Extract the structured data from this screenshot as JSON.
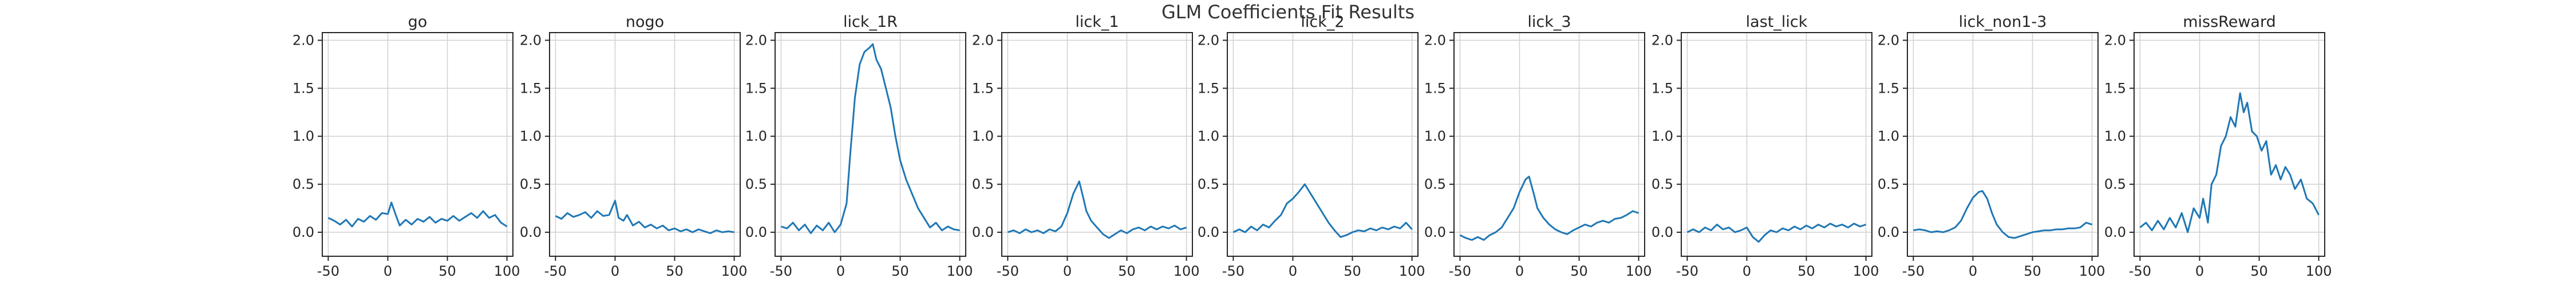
{
  "figure": {
    "title": "GLM Coefficients Fit Results"
  },
  "style": {
    "line_color": "#1f77b4",
    "grid_color": "#d0d0d0",
    "frame_color": "#262626"
  },
  "chart_data": [
    {
      "type": "line",
      "title": "go",
      "xlim": [
        -55,
        105
      ],
      "ylim": [
        -0.25,
        2.08
      ],
      "xticks": [
        -50,
        0,
        50,
        100
      ],
      "yticks": [
        0.0,
        0.5,
        1.0,
        1.5,
        2.0
      ],
      "grid": true,
      "xlabel": "",
      "ylabel": "",
      "points": [
        [
          -50,
          0.15
        ],
        [
          -45,
          0.12
        ],
        [
          -40,
          0.08
        ],
        [
          -35,
          0.13
        ],
        [
          -30,
          0.06
        ],
        [
          -25,
          0.14
        ],
        [
          -20,
          0.11
        ],
        [
          -15,
          0.17
        ],
        [
          -10,
          0.13
        ],
        [
          -5,
          0.2
        ],
        [
          0,
          0.19
        ],
        [
          3,
          0.31
        ],
        [
          7,
          0.17
        ],
        [
          10,
          0.07
        ],
        [
          15,
          0.13
        ],
        [
          20,
          0.08
        ],
        [
          25,
          0.14
        ],
        [
          30,
          0.11
        ],
        [
          35,
          0.16
        ],
        [
          40,
          0.1
        ],
        [
          45,
          0.14
        ],
        [
          50,
          0.12
        ],
        [
          55,
          0.17
        ],
        [
          60,
          0.12
        ],
        [
          65,
          0.16
        ],
        [
          70,
          0.2
        ],
        [
          75,
          0.15
        ],
        [
          80,
          0.22
        ],
        [
          85,
          0.15
        ],
        [
          90,
          0.18
        ],
        [
          95,
          0.1
        ],
        [
          100,
          0.06
        ]
      ]
    },
    {
      "type": "line",
      "title": "nogo",
      "xlim": [
        -55,
        105
      ],
      "ylim": [
        -0.25,
        2.08
      ],
      "xticks": [
        -50,
        0,
        50,
        100
      ],
      "yticks": [
        0.0,
        0.5,
        1.0,
        1.5,
        2.0
      ],
      "grid": true,
      "xlabel": "",
      "ylabel": "",
      "points": [
        [
          -50,
          0.17
        ],
        [
          -45,
          0.14
        ],
        [
          -40,
          0.2
        ],
        [
          -35,
          0.16
        ],
        [
          -30,
          0.18
        ],
        [
          -25,
          0.21
        ],
        [
          -20,
          0.15
        ],
        [
          -15,
          0.22
        ],
        [
          -10,
          0.17
        ],
        [
          -5,
          0.18
        ],
        [
          0,
          0.33
        ],
        [
          3,
          0.15
        ],
        [
          7,
          0.12
        ],
        [
          10,
          0.18
        ],
        [
          15,
          0.07
        ],
        [
          20,
          0.11
        ],
        [
          25,
          0.05
        ],
        [
          30,
          0.08
        ],
        [
          35,
          0.04
        ],
        [
          40,
          0.07
        ],
        [
          45,
          0.02
        ],
        [
          50,
          0.04
        ],
        [
          55,
          0.01
        ],
        [
          60,
          0.03
        ],
        [
          65,
          0.0
        ],
        [
          70,
          0.03
        ],
        [
          75,
          0.01
        ],
        [
          80,
          -0.01
        ],
        [
          85,
          0.02
        ],
        [
          90,
          0.0
        ],
        [
          95,
          0.01
        ],
        [
          100,
          0.0
        ]
      ]
    },
    {
      "type": "line",
      "title": "lick_1R",
      "xlim": [
        -55,
        105
      ],
      "ylim": [
        -0.25,
        2.08
      ],
      "xticks": [
        -50,
        0,
        50,
        100
      ],
      "yticks": [
        0.0,
        0.5,
        1.0,
        1.5,
        2.0
      ],
      "grid": true,
      "xlabel": "",
      "ylabel": "",
      "points": [
        [
          -50,
          0.06
        ],
        [
          -45,
          0.04
        ],
        [
          -40,
          0.1
        ],
        [
          -35,
          0.02
        ],
        [
          -30,
          0.08
        ],
        [
          -25,
          -0.01
        ],
        [
          -20,
          0.07
        ],
        [
          -15,
          0.02
        ],
        [
          -10,
          0.1
        ],
        [
          -5,
          0.0
        ],
        [
          0,
          0.08
        ],
        [
          5,
          0.3
        ],
        [
          8,
          0.8
        ],
        [
          12,
          1.4
        ],
        [
          16,
          1.75
        ],
        [
          20,
          1.88
        ],
        [
          24,
          1.92
        ],
        [
          27,
          1.96
        ],
        [
          30,
          1.8
        ],
        [
          34,
          1.7
        ],
        [
          38,
          1.5
        ],
        [
          42,
          1.3
        ],
        [
          46,
          1.0
        ],
        [
          50,
          0.75
        ],
        [
          55,
          0.55
        ],
        [
          60,
          0.4
        ],
        [
          65,
          0.25
        ],
        [
          70,
          0.15
        ],
        [
          75,
          0.05
        ],
        [
          80,
          0.1
        ],
        [
          85,
          0.02
        ],
        [
          90,
          0.06
        ],
        [
          95,
          0.03
        ],
        [
          100,
          0.02
        ]
      ]
    },
    {
      "type": "line",
      "title": "lick_1",
      "xlim": [
        -55,
        105
      ],
      "ylim": [
        -0.25,
        2.08
      ],
      "xticks": [
        -50,
        0,
        50,
        100
      ],
      "yticks": [
        0.0,
        0.5,
        1.0,
        1.5,
        2.0
      ],
      "grid": true,
      "xlabel": "",
      "ylabel": "",
      "points": [
        [
          -50,
          0.0
        ],
        [
          -45,
          0.02
        ],
        [
          -40,
          -0.01
        ],
        [
          -35,
          0.03
        ],
        [
          -30,
          0.0
        ],
        [
          -25,
          0.02
        ],
        [
          -20,
          -0.01
        ],
        [
          -15,
          0.03
        ],
        [
          -10,
          0.01
        ],
        [
          -5,
          0.06
        ],
        [
          0,
          0.2
        ],
        [
          5,
          0.4
        ],
        [
          10,
          0.53
        ],
        [
          13,
          0.38
        ],
        [
          16,
          0.22
        ],
        [
          20,
          0.12
        ],
        [
          25,
          0.05
        ],
        [
          30,
          -0.02
        ],
        [
          35,
          -0.06
        ],
        [
          40,
          -0.02
        ],
        [
          45,
          0.02
        ],
        [
          50,
          -0.01
        ],
        [
          55,
          0.03
        ],
        [
          60,
          0.05
        ],
        [
          65,
          0.02
        ],
        [
          70,
          0.06
        ],
        [
          75,
          0.03
        ],
        [
          80,
          0.06
        ],
        [
          85,
          0.04
        ],
        [
          90,
          0.07
        ],
        [
          95,
          0.03
        ],
        [
          100,
          0.05
        ]
      ]
    },
    {
      "type": "line",
      "title": "lick_2",
      "xlim": [
        -55,
        105
      ],
      "ylim": [
        -0.25,
        2.08
      ],
      "xticks": [
        -50,
        0,
        50,
        100
      ],
      "yticks": [
        0.0,
        0.5,
        1.0,
        1.5,
        2.0
      ],
      "grid": true,
      "xlabel": "",
      "ylabel": "",
      "points": [
        [
          -50,
          0.0
        ],
        [
          -45,
          0.03
        ],
        [
          -40,
          0.0
        ],
        [
          -35,
          0.06
        ],
        [
          -30,
          0.02
        ],
        [
          -25,
          0.08
        ],
        [
          -20,
          0.05
        ],
        [
          -15,
          0.12
        ],
        [
          -10,
          0.18
        ],
        [
          -5,
          0.3
        ],
        [
          0,
          0.35
        ],
        [
          5,
          0.42
        ],
        [
          10,
          0.5
        ],
        [
          15,
          0.4
        ],
        [
          20,
          0.3
        ],
        [
          25,
          0.2
        ],
        [
          30,
          0.1
        ],
        [
          35,
          0.02
        ],
        [
          40,
          -0.05
        ],
        [
          45,
          -0.03
        ],
        [
          50,
          0.0
        ],
        [
          55,
          0.02
        ],
        [
          60,
          0.01
        ],
        [
          65,
          0.04
        ],
        [
          70,
          0.02
        ],
        [
          75,
          0.05
        ],
        [
          80,
          0.03
        ],
        [
          85,
          0.06
        ],
        [
          90,
          0.04
        ],
        [
          95,
          0.1
        ],
        [
          100,
          0.03
        ]
      ]
    },
    {
      "type": "line",
      "title": "lick_3",
      "xlim": [
        -55,
        105
      ],
      "ylim": [
        -0.25,
        2.08
      ],
      "xticks": [
        -50,
        0,
        50,
        100
      ],
      "yticks": [
        0.0,
        0.5,
        1.0,
        1.5,
        2.0
      ],
      "grid": true,
      "xlabel": "",
      "ylabel": "",
      "points": [
        [
          -50,
          -0.03
        ],
        [
          -45,
          -0.06
        ],
        [
          -40,
          -0.08
        ],
        [
          -35,
          -0.05
        ],
        [
          -30,
          -0.08
        ],
        [
          -25,
          -0.03
        ],
        [
          -20,
          0.0
        ],
        [
          -15,
          0.05
        ],
        [
          -10,
          0.15
        ],
        [
          -5,
          0.25
        ],
        [
          0,
          0.42
        ],
        [
          5,
          0.55
        ],
        [
          8,
          0.58
        ],
        [
          12,
          0.4
        ],
        [
          15,
          0.25
        ],
        [
          20,
          0.15
        ],
        [
          25,
          0.08
        ],
        [
          30,
          0.03
        ],
        [
          35,
          0.0
        ],
        [
          40,
          -0.02
        ],
        [
          45,
          0.02
        ],
        [
          50,
          0.05
        ],
        [
          55,
          0.08
        ],
        [
          60,
          0.06
        ],
        [
          65,
          0.1
        ],
        [
          70,
          0.12
        ],
        [
          75,
          0.1
        ],
        [
          80,
          0.14
        ],
        [
          85,
          0.15
        ],
        [
          90,
          0.18
        ],
        [
          95,
          0.22
        ],
        [
          100,
          0.2
        ]
      ]
    },
    {
      "type": "line",
      "title": "last_lick",
      "xlim": [
        -55,
        105
      ],
      "ylim": [
        -0.25,
        2.08
      ],
      "xticks": [
        -50,
        0,
        50,
        100
      ],
      "yticks": [
        0.0,
        0.5,
        1.0,
        1.5,
        2.0
      ],
      "grid": true,
      "xlabel": "",
      "ylabel": "",
      "points": [
        [
          -50,
          0.0
        ],
        [
          -45,
          0.03
        ],
        [
          -40,
          0.0
        ],
        [
          -35,
          0.05
        ],
        [
          -30,
          0.02
        ],
        [
          -25,
          0.08
        ],
        [
          -20,
          0.03
        ],
        [
          -15,
          0.05
        ],
        [
          -10,
          0.0
        ],
        [
          -5,
          0.02
        ],
        [
          0,
          0.05
        ],
        [
          5,
          -0.05
        ],
        [
          10,
          -0.1
        ],
        [
          15,
          -0.03
        ],
        [
          20,
          0.02
        ],
        [
          25,
          0.0
        ],
        [
          30,
          0.04
        ],
        [
          35,
          0.02
        ],
        [
          40,
          0.06
        ],
        [
          45,
          0.03
        ],
        [
          50,
          0.07
        ],
        [
          55,
          0.04
        ],
        [
          60,
          0.08
        ],
        [
          65,
          0.05
        ],
        [
          70,
          0.09
        ],
        [
          75,
          0.06
        ],
        [
          80,
          0.08
        ],
        [
          85,
          0.05
        ],
        [
          90,
          0.09
        ],
        [
          95,
          0.06
        ],
        [
          100,
          0.08
        ]
      ]
    },
    {
      "type": "line",
      "title": "lick_non1-3",
      "xlim": [
        -55,
        105
      ],
      "ylim": [
        -0.25,
        2.08
      ],
      "xticks": [
        -50,
        0,
        50,
        100
      ],
      "yticks": [
        0.0,
        0.5,
        1.0,
        1.5,
        2.0
      ],
      "grid": true,
      "xlabel": "",
      "ylabel": "",
      "points": [
        [
          -50,
          0.02
        ],
        [
          -45,
          0.03
        ],
        [
          -40,
          0.02
        ],
        [
          -35,
          0.0
        ],
        [
          -30,
          0.01
        ],
        [
          -25,
          0.0
        ],
        [
          -20,
          0.02
        ],
        [
          -15,
          0.05
        ],
        [
          -10,
          0.12
        ],
        [
          -5,
          0.25
        ],
        [
          0,
          0.36
        ],
        [
          5,
          0.42
        ],
        [
          8,
          0.43
        ],
        [
          12,
          0.35
        ],
        [
          16,
          0.2
        ],
        [
          20,
          0.08
        ],
        [
          25,
          0.0
        ],
        [
          30,
          -0.05
        ],
        [
          35,
          -0.06
        ],
        [
          40,
          -0.04
        ],
        [
          45,
          -0.02
        ],
        [
          50,
          0.0
        ],
        [
          55,
          0.01
        ],
        [
          60,
          0.02
        ],
        [
          65,
          0.02
        ],
        [
          70,
          0.03
        ],
        [
          75,
          0.03
        ],
        [
          80,
          0.04
        ],
        [
          85,
          0.04
        ],
        [
          90,
          0.05
        ],
        [
          95,
          0.1
        ],
        [
          100,
          0.08
        ]
      ]
    },
    {
      "type": "line",
      "title": "missReward",
      "xlim": [
        -55,
        105
      ],
      "ylim": [
        -0.25,
        2.08
      ],
      "xticks": [
        -50,
        0,
        50,
        100
      ],
      "yticks": [
        0.0,
        0.5,
        1.0,
        1.5,
        2.0
      ],
      "grid": true,
      "xlabel": "",
      "ylabel": "",
      "points": [
        [
          -50,
          0.05
        ],
        [
          -45,
          0.1
        ],
        [
          -40,
          0.02
        ],
        [
          -35,
          0.12
        ],
        [
          -30,
          0.03
        ],
        [
          -25,
          0.15
        ],
        [
          -20,
          0.05
        ],
        [
          -15,
          0.2
        ],
        [
          -10,
          0.0
        ],
        [
          -5,
          0.25
        ],
        [
          0,
          0.15
        ],
        [
          3,
          0.35
        ],
        [
          7,
          0.1
        ],
        [
          10,
          0.5
        ],
        [
          14,
          0.6
        ],
        [
          18,
          0.9
        ],
        [
          22,
          1.0
        ],
        [
          26,
          1.2
        ],
        [
          30,
          1.1
        ],
        [
          34,
          1.45
        ],
        [
          37,
          1.25
        ],
        [
          40,
          1.35
        ],
        [
          44,
          1.05
        ],
        [
          48,
          1.0
        ],
        [
          52,
          0.85
        ],
        [
          56,
          0.95
        ],
        [
          60,
          0.6
        ],
        [
          64,
          0.7
        ],
        [
          68,
          0.55
        ],
        [
          72,
          0.68
        ],
        [
          76,
          0.6
        ],
        [
          80,
          0.45
        ],
        [
          85,
          0.55
        ],
        [
          90,
          0.35
        ],
        [
          95,
          0.3
        ],
        [
          100,
          0.18
        ]
      ]
    }
  ]
}
